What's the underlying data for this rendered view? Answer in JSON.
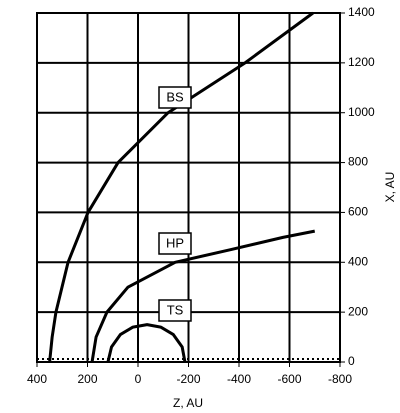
{
  "chart_data": {
    "type": "line",
    "xlabel": "Z, AU",
    "ylabel": "X, AU",
    "xlim": [
      400,
      -800
    ],
    "xticks": [
      400,
      200,
      0,
      -200,
      -400,
      -600,
      -800
    ],
    "ylim": [
      0,
      1400
    ],
    "yticks": [
      0,
      200,
      400,
      600,
      800,
      1000,
      1200,
      1400
    ],
    "grid": true,
    "series": [
      {
        "name": "BS",
        "color": "#000000",
        "x": [
          350,
          340,
          325,
          277,
          198,
          79,
          -119,
          -424,
          -693
        ],
        "values": [
          0,
          100,
          200,
          400,
          600,
          800,
          1000,
          1200,
          1400
        ]
      },
      {
        "name": "HP",
        "color": "#000000",
        "x": [
          182,
          166,
          123,
          40,
          -147,
          -364,
          -574,
          -700
        ],
        "values": [
          0,
          100,
          200,
          300,
          400,
          450,
          500,
          525
        ]
      },
      {
        "name": "TS",
        "color": "#000000",
        "x": [
          119,
          105,
          70,
          20,
          -36,
          -90,
          -140,
          -175,
          -186
        ],
        "values": [
          0,
          60,
          110,
          140,
          150,
          140,
          110,
          60,
          0
        ]
      }
    ]
  }
}
